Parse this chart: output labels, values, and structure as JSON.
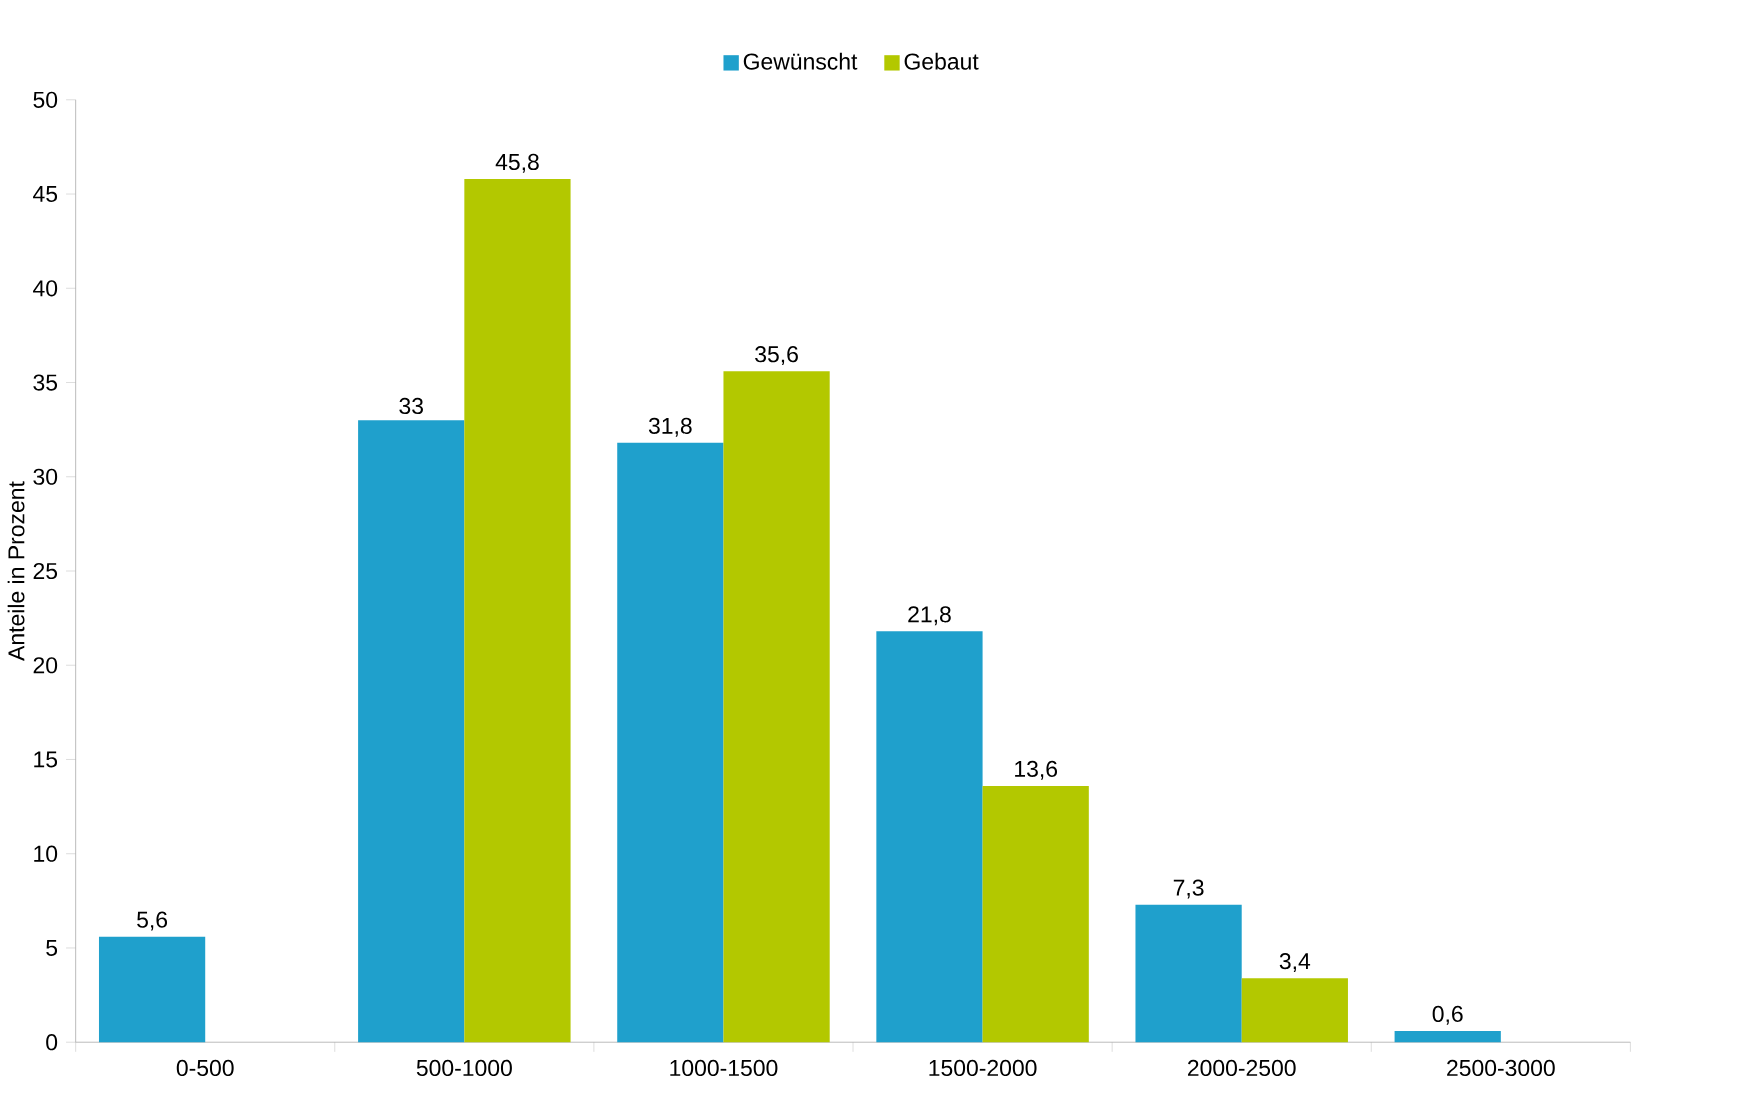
{
  "chart_data": {
    "type": "bar",
    "ylabel": "Anteile in Prozent",
    "categories": [
      "0-500",
      "500-1000",
      "1000-1500",
      "1500-2000",
      "2000-2500",
      "2500-3000"
    ],
    "series": [
      {
        "name": "Gewünscht",
        "color": "#1fa0cc",
        "values": [
          5.6,
          33,
          31.8,
          21.8,
          7.3,
          0.6
        ],
        "value_labels": [
          "5,6",
          "33",
          "31,8",
          "21,8",
          "7,3",
          "0,6"
        ]
      },
      {
        "name": "Gebaut",
        "color": "#b3c800",
        "values": [
          null,
          45.8,
          35.6,
          13.6,
          3.4,
          null
        ],
        "value_labels": [
          null,
          "45,8",
          "35,6",
          "13,6",
          "3,4",
          null
        ]
      }
    ],
    "ylim": [
      0,
      50
    ],
    "yticks": [
      0,
      5,
      10,
      15,
      20,
      25,
      30,
      35,
      40,
      45,
      50
    ],
    "grid": false,
    "legend": "top"
  }
}
